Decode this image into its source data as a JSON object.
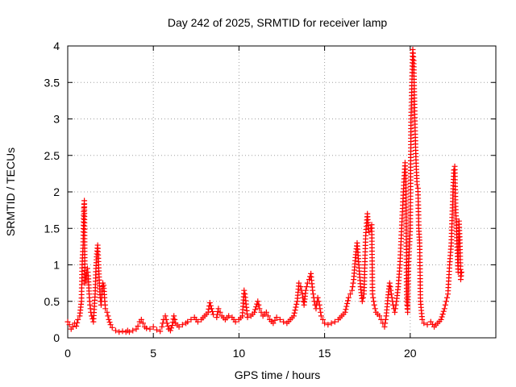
{
  "chart_data": {
    "type": "scatter",
    "title": "Day 242 of 2025, SRMTID for receiver lamp",
    "xlabel": "GPS time / hours",
    "ylabel": "SRMTID / TECUs",
    "xlim": [
      0,
      25
    ],
    "ylim": [
      0,
      4
    ],
    "xticks": [
      0,
      5,
      10,
      15,
      20
    ],
    "xtick_labels": [
      "0",
      "5",
      "10",
      "15",
      "20"
    ],
    "yticks": [
      0,
      0.5,
      1,
      1.5,
      2,
      2.5,
      3,
      3.5,
      4
    ],
    "ytick_labels": [
      "0",
      "0.5",
      "1",
      "1.5",
      "2",
      "2.5",
      "3",
      "3.5",
      "4"
    ],
    "grid": true,
    "marker": "+",
    "color": "#ff0000",
    "series": [
      {
        "name": "SRMTID",
        "points": [
          [
            0.0,
            0.22
          ],
          [
            0.1,
            0.18
          ],
          [
            0.2,
            0.12
          ],
          [
            0.3,
            0.15
          ],
          [
            0.4,
            0.2
          ],
          [
            0.5,
            0.16
          ],
          [
            0.6,
            0.25
          ],
          [
            0.7,
            0.3
          ],
          [
            0.8,
            0.5
          ],
          [
            0.85,
            1.05
          ],
          [
            0.9,
            1.27
          ],
          [
            0.93,
            1.68
          ],
          [
            0.95,
            1.78
          ],
          [
            0.97,
            1.88
          ],
          [
            1.0,
            0.75
          ],
          [
            1.05,
            0.82
          ],
          [
            1.1,
            0.9
          ],
          [
            1.15,
            0.95
          ],
          [
            1.2,
            0.85
          ],
          [
            1.25,
            0.6
          ],
          [
            1.3,
            0.45
          ],
          [
            1.35,
            0.35
          ],
          [
            1.4,
            0.3
          ],
          [
            1.5,
            0.22
          ],
          [
            1.6,
            0.6
          ],
          [
            1.65,
            0.95
          ],
          [
            1.7,
            1.15
          ],
          [
            1.75,
            1.27
          ],
          [
            1.8,
            1.0
          ],
          [
            1.85,
            0.75
          ],
          [
            1.9,
            0.55
          ],
          [
            1.95,
            0.45
          ],
          [
            2.0,
            0.6
          ],
          [
            2.05,
            0.75
          ],
          [
            2.1,
            0.72
          ],
          [
            2.15,
            0.55
          ],
          [
            2.2,
            0.4
          ],
          [
            2.3,
            0.35
          ],
          [
            2.4,
            0.25
          ],
          [
            2.5,
            0.18
          ],
          [
            2.6,
            0.14
          ],
          [
            2.8,
            0.1
          ],
          [
            3.0,
            0.08
          ],
          [
            3.2,
            0.09
          ],
          [
            3.4,
            0.08
          ],
          [
            3.5,
            0.1
          ],
          [
            3.6,
            0.08
          ],
          [
            3.8,
            0.1
          ],
          [
            4.0,
            0.12
          ],
          [
            4.1,
            0.16
          ],
          [
            4.2,
            0.22
          ],
          [
            4.3,
            0.25
          ],
          [
            4.4,
            0.2
          ],
          [
            4.5,
            0.15
          ],
          [
            4.6,
            0.13
          ],
          [
            4.8,
            0.12
          ],
          [
            5.0,
            0.15
          ],
          [
            5.2,
            0.11
          ],
          [
            5.4,
            0.09
          ],
          [
            5.5,
            0.15
          ],
          [
            5.6,
            0.25
          ],
          [
            5.7,
            0.3
          ],
          [
            5.8,
            0.2
          ],
          [
            5.9,
            0.12
          ],
          [
            6.0,
            0.1
          ],
          [
            6.1,
            0.17
          ],
          [
            6.2,
            0.3
          ],
          [
            6.3,
            0.2
          ],
          [
            6.5,
            0.15
          ],
          [
            6.7,
            0.18
          ],
          [
            6.9,
            0.2
          ],
          [
            7.0,
            0.22
          ],
          [
            7.2,
            0.25
          ],
          [
            7.4,
            0.28
          ],
          [
            7.6,
            0.22
          ],
          [
            7.8,
            0.25
          ],
          [
            8.0,
            0.3
          ],
          [
            8.2,
            0.35
          ],
          [
            8.3,
            0.48
          ],
          [
            8.5,
            0.32
          ],
          [
            8.7,
            0.28
          ],
          [
            8.8,
            0.4
          ],
          [
            9.0,
            0.3
          ],
          [
            9.2,
            0.25
          ],
          [
            9.4,
            0.3
          ],
          [
            9.6,
            0.28
          ],
          [
            9.8,
            0.22
          ],
          [
            10.0,
            0.25
          ],
          [
            10.2,
            0.3
          ],
          [
            10.3,
            0.65
          ],
          [
            10.35,
            0.6
          ],
          [
            10.5,
            0.28
          ],
          [
            10.7,
            0.3
          ],
          [
            10.9,
            0.35
          ],
          [
            11.1,
            0.5
          ],
          [
            11.2,
            0.4
          ],
          [
            11.4,
            0.3
          ],
          [
            11.6,
            0.35
          ],
          [
            11.8,
            0.25
          ],
          [
            12.0,
            0.2
          ],
          [
            12.2,
            0.28
          ],
          [
            12.4,
            0.25
          ],
          [
            12.6,
            0.22
          ],
          [
            12.8,
            0.2
          ],
          [
            13.0,
            0.25
          ],
          [
            13.2,
            0.3
          ],
          [
            13.4,
            0.5
          ],
          [
            13.5,
            0.75
          ],
          [
            13.6,
            0.7
          ],
          [
            13.7,
            0.6
          ],
          [
            13.8,
            0.45
          ],
          [
            13.9,
            0.65
          ],
          [
            14.0,
            0.75
          ],
          [
            14.1,
            0.8
          ],
          [
            14.2,
            0.88
          ],
          [
            14.3,
            0.65
          ],
          [
            14.4,
            0.5
          ],
          [
            14.5,
            0.4
          ],
          [
            14.6,
            0.55
          ],
          [
            14.7,
            0.45
          ],
          [
            14.8,
            0.3
          ],
          [
            15.0,
            0.2
          ],
          [
            15.2,
            0.18
          ],
          [
            15.4,
            0.2
          ],
          [
            15.6,
            0.22
          ],
          [
            15.8,
            0.25
          ],
          [
            16.0,
            0.3
          ],
          [
            16.2,
            0.35
          ],
          [
            16.4,
            0.55
          ],
          [
            16.5,
            0.6
          ],
          [
            16.6,
            0.65
          ],
          [
            16.7,
            0.8
          ],
          [
            16.8,
            1.1
          ],
          [
            16.9,
            1.3
          ],
          [
            17.0,
            1.0
          ],
          [
            17.1,
            0.7
          ],
          [
            17.2,
            0.5
          ],
          [
            17.3,
            0.6
          ],
          [
            17.4,
            1.4
          ],
          [
            17.5,
            1.7
          ],
          [
            17.55,
            1.5
          ],
          [
            17.6,
            1.45
          ],
          [
            17.7,
            1.5
          ],
          [
            17.75,
            1.55
          ],
          [
            17.8,
            0.6
          ],
          [
            17.9,
            0.45
          ],
          [
            18.0,
            0.35
          ],
          [
            18.2,
            0.3
          ],
          [
            18.4,
            0.2
          ],
          [
            18.5,
            0.15
          ],
          [
            18.6,
            0.3
          ],
          [
            18.7,
            0.55
          ],
          [
            18.8,
            0.75
          ],
          [
            18.9,
            0.6
          ],
          [
            19.0,
            0.45
          ],
          [
            19.1,
            0.35
          ],
          [
            19.2,
            0.5
          ],
          [
            19.3,
            0.7
          ],
          [
            19.4,
            1.0
          ],
          [
            19.5,
            1.5
          ],
          [
            19.6,
            2.0
          ],
          [
            19.7,
            2.4
          ],
          [
            19.75,
            2.1
          ],
          [
            19.8,
            0.5
          ],
          [
            19.85,
            0.35
          ],
          [
            19.9,
            1.0
          ],
          [
            20.0,
            1.5
          ],
          [
            20.05,
            3.0
          ],
          [
            20.1,
            3.5
          ],
          [
            20.15,
            3.95
          ],
          [
            20.2,
            3.8
          ],
          [
            20.25,
            3.2
          ],
          [
            20.3,
            2.7
          ],
          [
            20.35,
            2.35
          ],
          [
            20.4,
            2.1
          ],
          [
            20.45,
            2.05
          ],
          [
            20.5,
            1.5
          ],
          [
            20.55,
            1.3
          ],
          [
            20.6,
            0.5
          ],
          [
            20.7,
            0.25
          ],
          [
            20.8,
            0.2
          ],
          [
            21.0,
            0.18
          ],
          [
            21.2,
            0.22
          ],
          [
            21.4,
            0.15
          ],
          [
            21.6,
            0.2
          ],
          [
            21.8,
            0.25
          ],
          [
            22.0,
            0.4
          ],
          [
            22.1,
            0.5
          ],
          [
            22.2,
            0.6
          ],
          [
            22.3,
            1.0
          ],
          [
            22.4,
            1.3
          ],
          [
            22.5,
            2.0
          ],
          [
            22.55,
            2.3
          ],
          [
            22.6,
            2.35
          ],
          [
            22.65,
            1.8
          ],
          [
            22.7,
            1.5
          ],
          [
            22.75,
            1.2
          ],
          [
            22.8,
            0.9
          ],
          [
            22.85,
            1.6
          ],
          [
            22.9,
            1.3
          ],
          [
            22.95,
            0.8
          ],
          [
            23.0,
            0.9
          ]
        ]
      }
    ]
  }
}
